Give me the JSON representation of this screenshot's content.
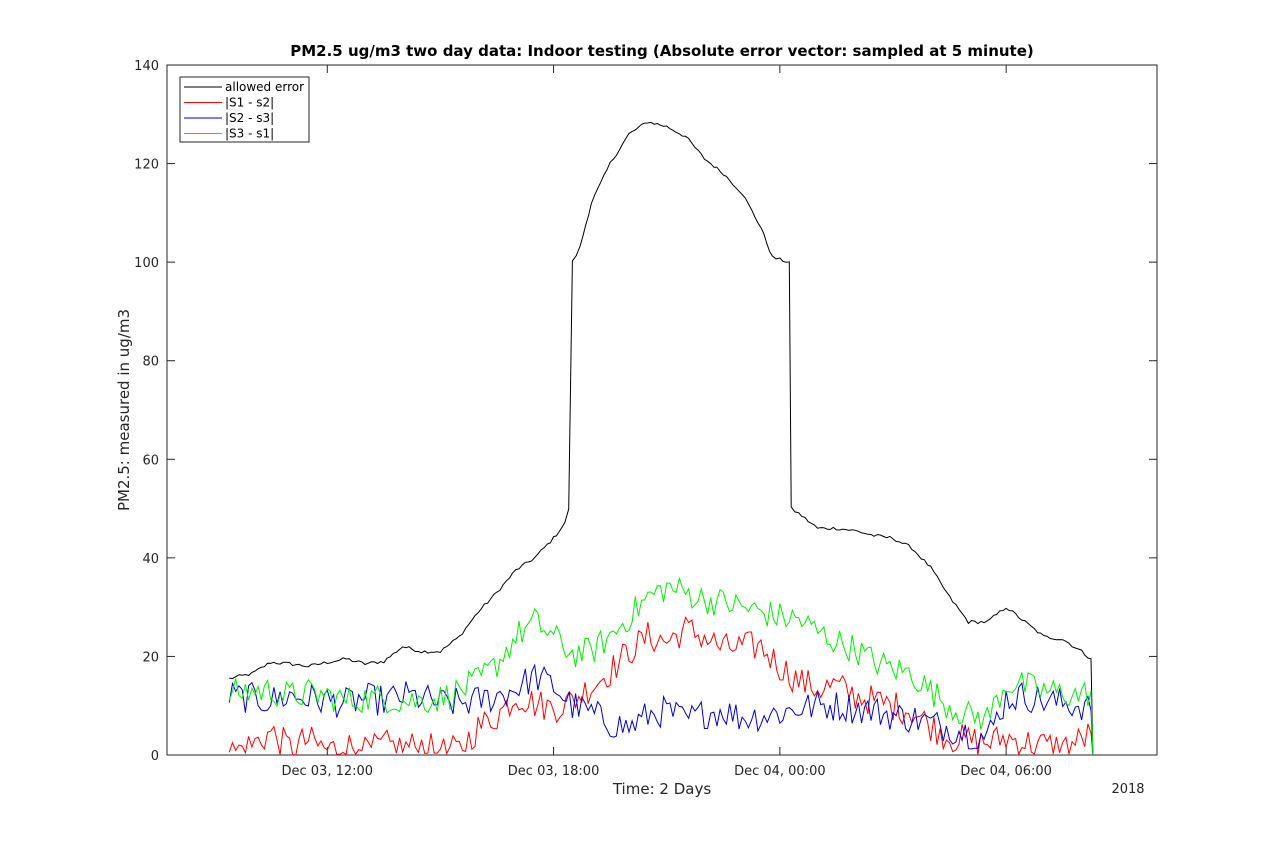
{
  "chart_data": {
    "type": "line",
    "title": "PM2.5 ug/m3 two day data: Indoor testing (Absolute error vector: sampled at 5 minute)",
    "xlabel": "Time: 2 Days",
    "ylabel": "PM2.5: measured in ug/m3",
    "x_secondary_label": "2018",
    "x_unit": "hours since Dec 03, 00:00",
    "xlim": [
      7.75,
      10.0
    ],
    "ylim": [
      0,
      140
    ],
    "yticks": [
      0,
      20,
      40,
      60,
      80,
      100,
      120,
      140
    ],
    "xticks": [
      {
        "label": "Dec 03, 12:00"
      },
      {
        "label": "Dec 03, 18:00"
      },
      {
        "label": "Dec 04, 00:00"
      },
      {
        "label": "Dec 04, 06:00"
      }
    ],
    "grid": false,
    "legend_position": "top-left",
    "series": [
      {
        "name": "allowed error",
        "color": "#000000",
        "points": [
          [
            9.4,
            15.5
          ],
          [
            10.0,
            16.5
          ],
          [
            10.5,
            18.8
          ],
          [
            11.0,
            18.5
          ],
          [
            11.5,
            18.0
          ],
          [
            12.0,
            18.8
          ],
          [
            12.5,
            19.5
          ],
          [
            13.0,
            18.5
          ],
          [
            13.5,
            19.0
          ],
          [
            14.0,
            22.0
          ],
          [
            14.5,
            21.0
          ],
          [
            15.0,
            21.0
          ],
          [
            15.5,
            24.0
          ],
          [
            16.0,
            29.0
          ],
          [
            16.5,
            33.0
          ],
          [
            17.0,
            37.5
          ],
          [
            17.5,
            40.0
          ],
          [
            18.0,
            44.0
          ],
          [
            18.3,
            47.0
          ],
          [
            18.4,
            50.0
          ],
          [
            18.5,
            100.0
          ],
          [
            18.7,
            103.0
          ],
          [
            19.0,
            112.0
          ],
          [
            19.5,
            120.0
          ],
          [
            20.0,
            126.0
          ],
          [
            20.5,
            128.5
          ],
          [
            21.0,
            127.5
          ],
          [
            21.5,
            125.5
          ],
          [
            22.0,
            121.0
          ],
          [
            22.5,
            118.0
          ],
          [
            23.0,
            114.0
          ],
          [
            23.5,
            107.0
          ],
          [
            23.8,
            101.0
          ],
          [
            24.0,
            100.5
          ],
          [
            24.25,
            100.0
          ],
          [
            24.3,
            50.0
          ],
          [
            24.5,
            49.0
          ],
          [
            25.0,
            46.0
          ],
          [
            25.5,
            46.0
          ],
          [
            26.0,
            45.5
          ],
          [
            26.5,
            44.5
          ],
          [
            27.0,
            44.0
          ],
          [
            27.5,
            42.0
          ],
          [
            28.0,
            38.0
          ],
          [
            28.5,
            32.0
          ],
          [
            29.0,
            27.0
          ],
          [
            29.5,
            27.0
          ],
          [
            30.0,
            30.0
          ],
          [
            30.5,
            27.0
          ],
          [
            31.0,
            24.0
          ],
          [
            31.5,
            23.5
          ],
          [
            32.0,
            21.0
          ],
          [
            32.25,
            19.5
          ],
          [
            32.3,
            0.0
          ]
        ]
      },
      {
        "name": "|S1 - s2|",
        "color": "#ff0000",
        "points": [
          [
            9.4,
            0.5
          ],
          [
            10.0,
            2.0
          ],
          [
            10.5,
            4.5
          ],
          [
            11.0,
            1.5
          ],
          [
            11.5,
            3.0
          ],
          [
            12.0,
            1.0
          ],
          [
            12.5,
            2.0
          ],
          [
            13.0,
            0.5
          ],
          [
            13.5,
            2.0
          ],
          [
            14.0,
            1.5
          ],
          [
            14.5,
            2.0
          ],
          [
            15.0,
            0.5
          ],
          [
            15.5,
            1.0
          ],
          [
            16.0,
            5.5
          ],
          [
            16.5,
            8.0
          ],
          [
            17.0,
            12.0
          ],
          [
            17.5,
            10.5
          ],
          [
            18.0,
            9.5
          ],
          [
            18.5,
            11.0
          ],
          [
            19.0,
            14.0
          ],
          [
            19.5,
            17.0
          ],
          [
            20.0,
            21.0
          ],
          [
            20.5,
            24.0
          ],
          [
            21.0,
            23.0
          ],
          [
            21.5,
            25.5
          ],
          [
            22.0,
            24.0
          ],
          [
            22.5,
            21.5
          ],
          [
            23.0,
            22.0
          ],
          [
            23.5,
            22.0
          ],
          [
            24.0,
            18.0
          ],
          [
            24.5,
            15.0
          ],
          [
            25.0,
            13.5
          ],
          [
            25.5,
            14.0
          ],
          [
            26.0,
            12.0
          ],
          [
            26.5,
            11.0
          ],
          [
            27.0,
            10.0
          ],
          [
            27.5,
            9.0
          ],
          [
            28.0,
            6.0
          ],
          [
            28.5,
            3.5
          ],
          [
            29.0,
            3.0
          ],
          [
            29.5,
            2.5
          ],
          [
            30.0,
            3.5
          ],
          [
            30.5,
            2.5
          ],
          [
            31.0,
            2.0
          ],
          [
            31.5,
            1.5
          ],
          [
            32.0,
            3.0
          ],
          [
            32.25,
            4.5
          ],
          [
            32.3,
            0.0
          ]
        ]
      },
      {
        "name": "|S2 - s3|",
        "color": "#0000cc",
        "points": [
          [
            9.4,
            12.0
          ],
          [
            10.0,
            11.5
          ],
          [
            10.5,
            11.0
          ],
          [
            11.0,
            12.0
          ],
          [
            11.5,
            11.5
          ],
          [
            12.0,
            11.0
          ],
          [
            12.5,
            10.5
          ],
          [
            13.0,
            11.5
          ],
          [
            13.5,
            11.0
          ],
          [
            14.0,
            12.0
          ],
          [
            14.5,
            11.5
          ],
          [
            15.0,
            10.5
          ],
          [
            15.5,
            10.5
          ],
          [
            16.0,
            11.0
          ],
          [
            16.5,
            12.0
          ],
          [
            17.0,
            13.5
          ],
          [
            17.5,
            16.0
          ],
          [
            18.0,
            14.0
          ],
          [
            18.5,
            10.0
          ],
          [
            19.0,
            8.5
          ],
          [
            19.5,
            6.5
          ],
          [
            20.0,
            5.5
          ],
          [
            20.5,
            8.0
          ],
          [
            21.0,
            9.0
          ],
          [
            21.5,
            7.0
          ],
          [
            22.0,
            8.5
          ],
          [
            22.5,
            9.0
          ],
          [
            23.0,
            7.5
          ],
          [
            23.5,
            8.0
          ],
          [
            24.0,
            8.5
          ],
          [
            24.5,
            9.5
          ],
          [
            25.0,
            10.0
          ],
          [
            25.5,
            10.0
          ],
          [
            26.0,
            9.5
          ],
          [
            26.5,
            9.0
          ],
          [
            27.0,
            8.0
          ],
          [
            27.5,
            7.5
          ],
          [
            28.0,
            6.5
          ],
          [
            28.5,
            5.5
          ],
          [
            29.0,
            4.5
          ],
          [
            29.5,
            3.5
          ],
          [
            30.0,
            11.5
          ],
          [
            30.5,
            12.0
          ],
          [
            31.0,
            11.0
          ],
          [
            31.5,
            10.5
          ],
          [
            32.0,
            10.0
          ],
          [
            32.25,
            9.0
          ],
          [
            32.3,
            0.0
          ]
        ]
      },
      {
        "name": "|S3 - s1|",
        "color": "#00ee00",
        "points": [
          [
            9.4,
            12.5
          ],
          [
            10.0,
            13.0
          ],
          [
            10.5,
            13.0
          ],
          [
            11.0,
            12.0
          ],
          [
            11.5,
            12.5
          ],
          [
            12.0,
            12.0
          ],
          [
            12.5,
            11.0
          ],
          [
            13.0,
            11.5
          ],
          [
            13.5,
            11.5
          ],
          [
            14.0,
            11.0
          ],
          [
            14.5,
            11.0
          ],
          [
            15.0,
            11.5
          ],
          [
            15.5,
            13.0
          ],
          [
            16.0,
            15.0
          ],
          [
            16.5,
            18.5
          ],
          [
            17.0,
            24.0
          ],
          [
            17.5,
            27.0
          ],
          [
            18.0,
            24.0
          ],
          [
            18.5,
            20.5
          ],
          [
            19.0,
            21.0
          ],
          [
            19.5,
            24.0
          ],
          [
            20.0,
            28.0
          ],
          [
            20.5,
            32.0
          ],
          [
            21.0,
            34.0
          ],
          [
            21.5,
            33.0
          ],
          [
            22.0,
            31.5
          ],
          [
            22.5,
            31.0
          ],
          [
            23.0,
            30.0
          ],
          [
            23.5,
            29.0
          ],
          [
            24.0,
            28.0
          ],
          [
            24.5,
            27.5
          ],
          [
            25.0,
            25.0
          ],
          [
            25.5,
            23.0
          ],
          [
            26.0,
            21.5
          ],
          [
            26.5,
            19.0
          ],
          [
            27.0,
            17.5
          ],
          [
            27.5,
            16.5
          ],
          [
            28.0,
            13.0
          ],
          [
            28.5,
            10.0
          ],
          [
            29.0,
            8.0
          ],
          [
            29.5,
            7.5
          ],
          [
            30.0,
            14.5
          ],
          [
            30.5,
            14.0
          ],
          [
            31.0,
            13.0
          ],
          [
            31.5,
            12.5
          ],
          [
            32.0,
            12.0
          ],
          [
            32.25,
            13.0
          ],
          [
            32.3,
            0.0
          ]
        ]
      }
    ]
  }
}
